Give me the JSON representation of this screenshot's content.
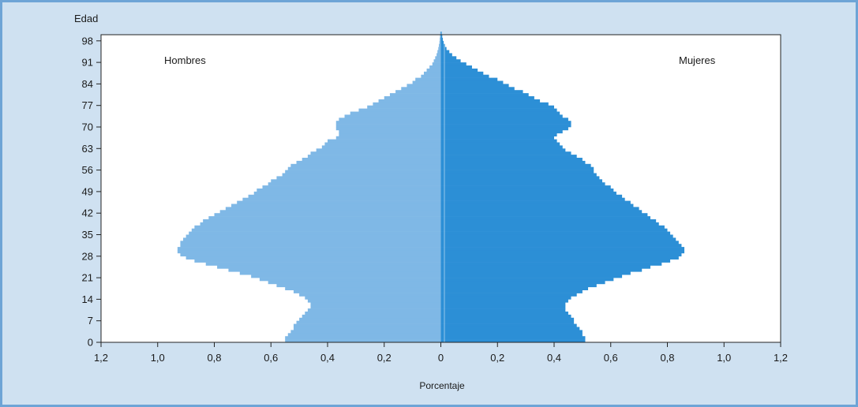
{
  "chart_data": {
    "type": "population-pyramid",
    "ylabel": "Edad",
    "xlabel": "Porcentaje",
    "left_label": "Hombres",
    "right_label": "Mujeres",
    "yticks": [
      "0",
      "7",
      "14",
      "21",
      "28",
      "35",
      "42",
      "49",
      "56",
      "63",
      "70",
      "77",
      "84",
      "91",
      "98"
    ],
    "ytick_values": [
      0,
      7,
      14,
      21,
      28,
      35,
      42,
      49,
      56,
      63,
      70,
      77,
      84,
      91,
      98
    ],
    "xticks_left": [
      "1,2",
      "1,0",
      "0,8",
      "0,6",
      "0,4",
      "0,2"
    ],
    "xtick_center": "0",
    "xticks_right": [
      "0,2",
      "0,4",
      "0,6",
      "0,8",
      "1,0",
      "1,2"
    ],
    "xlim": [
      -1.2,
      1.2
    ],
    "ylim": [
      0,
      100
    ],
    "colors": {
      "hombres": "#7fb8e6",
      "mujeres": "#2c8fd6",
      "background": "#cfe1f1"
    },
    "ages": [
      0,
      1,
      2,
      3,
      4,
      5,
      6,
      7,
      8,
      9,
      10,
      11,
      12,
      13,
      14,
      15,
      16,
      17,
      18,
      19,
      20,
      21,
      22,
      23,
      24,
      25,
      26,
      27,
      28,
      29,
      30,
      31,
      32,
      33,
      34,
      35,
      36,
      37,
      38,
      39,
      40,
      41,
      42,
      43,
      44,
      45,
      46,
      47,
      48,
      49,
      50,
      51,
      52,
      53,
      54,
      55,
      56,
      57,
      58,
      59,
      60,
      61,
      62,
      63,
      64,
      65,
      66,
      67,
      68,
      69,
      70,
      71,
      72,
      73,
      74,
      75,
      76,
      77,
      78,
      79,
      80,
      81,
      82,
      83,
      84,
      85,
      86,
      87,
      88,
      89,
      90,
      91,
      92,
      93,
      94,
      95,
      96,
      97,
      98,
      99,
      100
    ],
    "hombres": [
      0.55,
      0.55,
      0.54,
      0.53,
      0.52,
      0.52,
      0.51,
      0.5,
      0.49,
      0.48,
      0.47,
      0.46,
      0.46,
      0.47,
      0.48,
      0.5,
      0.52,
      0.55,
      0.58,
      0.61,
      0.64,
      0.67,
      0.71,
      0.75,
      0.79,
      0.83,
      0.87,
      0.9,
      0.92,
      0.93,
      0.93,
      0.92,
      0.92,
      0.91,
      0.9,
      0.89,
      0.88,
      0.87,
      0.85,
      0.84,
      0.82,
      0.8,
      0.78,
      0.76,
      0.74,
      0.72,
      0.7,
      0.68,
      0.66,
      0.65,
      0.63,
      0.61,
      0.6,
      0.58,
      0.56,
      0.55,
      0.54,
      0.53,
      0.51,
      0.49,
      0.47,
      0.46,
      0.44,
      0.42,
      0.41,
      0.4,
      0.37,
      0.36,
      0.36,
      0.37,
      0.37,
      0.37,
      0.36,
      0.34,
      0.32,
      0.29,
      0.26,
      0.24,
      0.22,
      0.2,
      0.18,
      0.16,
      0.14,
      0.12,
      0.1,
      0.09,
      0.07,
      0.06,
      0.05,
      0.04,
      0.03,
      0.025,
      0.02,
      0.015,
      0.012,
      0.009,
      0.007,
      0.005,
      0.004,
      0.003,
      0.002
    ],
    "mujeres": [
      0.51,
      0.51,
      0.5,
      0.5,
      0.49,
      0.48,
      0.47,
      0.47,
      0.46,
      0.45,
      0.44,
      0.44,
      0.44,
      0.45,
      0.46,
      0.48,
      0.5,
      0.52,
      0.55,
      0.58,
      0.61,
      0.64,
      0.67,
      0.71,
      0.74,
      0.78,
      0.81,
      0.84,
      0.85,
      0.86,
      0.86,
      0.85,
      0.84,
      0.83,
      0.82,
      0.81,
      0.8,
      0.79,
      0.77,
      0.76,
      0.74,
      0.73,
      0.71,
      0.7,
      0.68,
      0.67,
      0.65,
      0.64,
      0.62,
      0.61,
      0.6,
      0.58,
      0.57,
      0.56,
      0.55,
      0.54,
      0.54,
      0.53,
      0.51,
      0.5,
      0.48,
      0.46,
      0.44,
      0.43,
      0.42,
      0.41,
      0.4,
      0.41,
      0.43,
      0.45,
      0.46,
      0.46,
      0.45,
      0.43,
      0.42,
      0.41,
      0.4,
      0.38,
      0.35,
      0.33,
      0.31,
      0.29,
      0.26,
      0.24,
      0.22,
      0.2,
      0.17,
      0.15,
      0.13,
      0.11,
      0.09,
      0.07,
      0.055,
      0.04,
      0.03,
      0.02,
      0.015,
      0.01,
      0.007,
      0.005,
      0.003
    ]
  }
}
